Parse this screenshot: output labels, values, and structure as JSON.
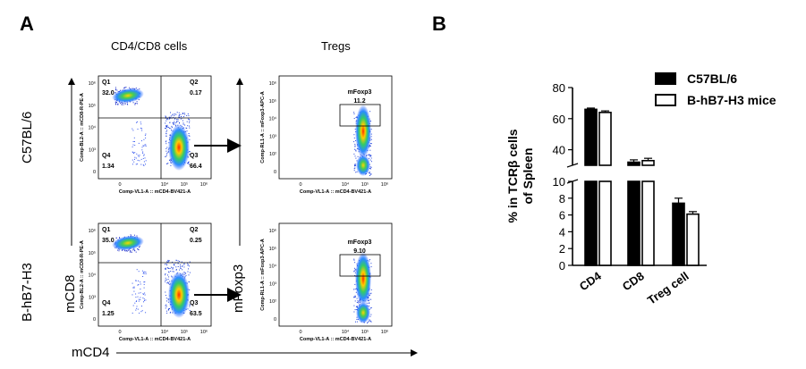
{
  "panel_a": {
    "letter": "A",
    "col_titles": [
      "CD4/CD8 cells",
      "Tregs"
    ],
    "row_labels": [
      "C57BL/6",
      "B-hB7-H3"
    ],
    "x_axis_title": "mCD4",
    "y_axis_titles": [
      "mCD8",
      "mFoxp3"
    ],
    "cd4cd8_plots": [
      {
        "row": "C57BL/6",
        "quadrants": [
          {
            "name": "Q1",
            "value": "32.0"
          },
          {
            "name": "Q2",
            "value": "0.17"
          },
          {
            "name": "Q3",
            "value": "66.4"
          },
          {
            "name": "Q4",
            "value": "1.34"
          }
        ],
        "xaxis": "Comp-VL1-A :: mCD4-BV421-A",
        "yaxis": "Comp-BL2-A :: mCD8-R-PE-A"
      },
      {
        "row": "B-hB7-H3",
        "quadrants": [
          {
            "name": "Q1",
            "value": "35.0"
          },
          {
            "name": "Q2",
            "value": "0.25"
          },
          {
            "name": "Q3",
            "value": "63.5"
          },
          {
            "name": "Q4",
            "value": "1.25"
          }
        ],
        "xaxis": "Comp-VL1-A :: mCD4-BV421-A",
        "yaxis": "Comp-BL2-A :: mCD8-R-PE-A"
      }
    ],
    "treg_plots": [
      {
        "row": "C57BL/6",
        "gate": "mFoxp3",
        "value": "11.2",
        "xaxis": "Comp-VL1-A :: mCD4-BV421-A",
        "yaxis": "Comp-RL1-A :: mFoxp3-APC-A"
      },
      {
        "row": "B-hB7-H3",
        "gate": "mFoxp3",
        "value": "9.10",
        "xaxis": "Comp-VL1-A :: mCD4-BV421-A",
        "yaxis": "Comp-RL1-A :: mFoxp3-APC-A"
      }
    ],
    "x_ticks": [
      "0",
      "10⁴",
      "10⁵",
      "10⁶"
    ],
    "y_ticks": [
      "10⁶",
      "10⁵",
      "10⁴",
      "10³",
      "0"
    ],
    "treg_y_ticks": [
      "10⁶",
      "10⁵",
      "10⁴",
      "10³",
      "10²",
      "0"
    ]
  },
  "chart_data": {
    "type": "bar",
    "panel_letter": "B",
    "categories": [
      "CD4",
      "CD8",
      "Treg cell"
    ],
    "series": [
      {
        "name": "C57BL/6",
        "values": [
          66,
          32,
          7.4
        ],
        "errors": [
          0.8,
          1.5,
          0.6
        ],
        "fill": "#000000"
      },
      {
        "name": "B-hB7-H3 mice",
        "values": [
          64,
          33,
          6.1
        ],
        "errors": [
          1.0,
          1.5,
          0.3
        ],
        "fill": "#ffffff"
      }
    ],
    "ylabel": "% in TCRβ cells of Spleen",
    "ylabel_lines": [
      "% in TCRβ cells",
      "of Spleen"
    ],
    "y_upper_ticks": [
      "40",
      "60",
      "80"
    ],
    "y_lower_ticks": [
      "0",
      "2",
      "4",
      "6",
      "8",
      "10"
    ],
    "broken_axis": true,
    "legend_position": "top-right"
  }
}
